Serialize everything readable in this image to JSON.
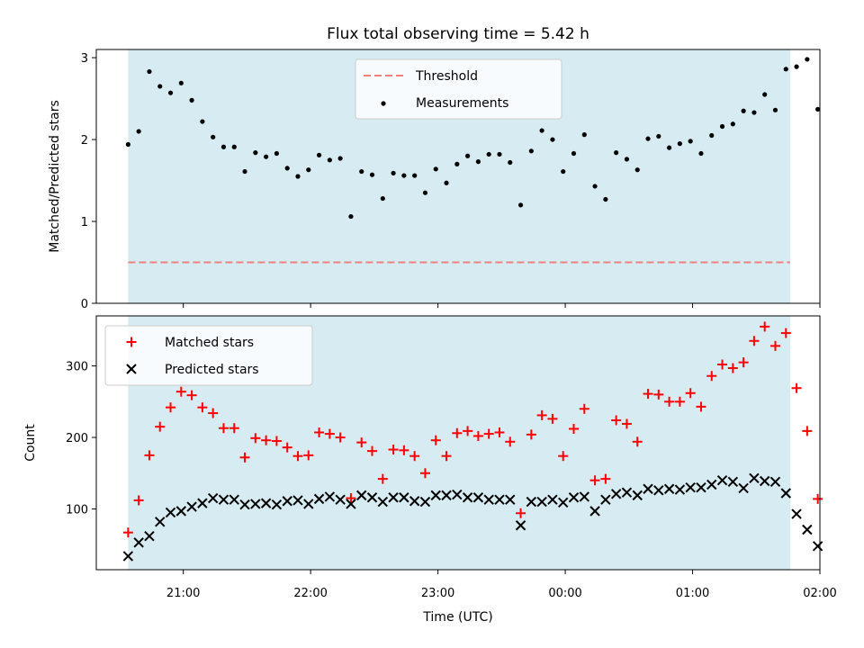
{
  "colors": {
    "span": "#add8e6",
    "threshold": "#f08080",
    "matched": "#ff0000",
    "predicted": "#000000",
    "measurements": "#000000"
  },
  "chart_data": [
    {
      "type": "scatter",
      "title": "Flux total observing time = 5.42 h",
      "ylabel": "Matched/Predicted stars",
      "xlabel": "",
      "ylim": [
        0,
        3.1
      ],
      "yticks": [
        0,
        1,
        2,
        3
      ],
      "xlim": [
        "20:19",
        "02:00"
      ],
      "xticks": [
        "21:00",
        "22:00",
        "23:00",
        "00:00",
        "01:00",
        "02:00"
      ],
      "show_xtick_labels": false,
      "shaded_span": [
        "20:34",
        "01:46"
      ],
      "legend": {
        "placement": "top-center",
        "entries": [
          "Threshold",
          "Measurements"
        ]
      },
      "threshold": {
        "name": "Threshold",
        "value": 0.5,
        "style": "dashed"
      },
      "series": [
        {
          "name": "Measurements",
          "x": [
            "20:34",
            "20:39",
            "20:44",
            "20:49",
            "20:54",
            "20:59",
            "21:04",
            "21:09",
            "21:14",
            "21:19",
            "21:24",
            "21:29",
            "21:34",
            "21:39",
            "21:44",
            "21:49",
            "21:54",
            "21:59",
            "22:04",
            "22:09",
            "22:14",
            "22:19",
            "22:24",
            "22:29",
            "22:34",
            "22:39",
            "22:44",
            "22:49",
            "22:54",
            "22:59",
            "23:04",
            "23:09",
            "23:14",
            "23:19",
            "23:24",
            "23:29",
            "23:34",
            "23:39",
            "23:44",
            "23:49",
            "23:54",
            "23:59",
            "00:04",
            "00:09",
            "00:14",
            "00:19",
            "00:24",
            "00:29",
            "00:34",
            "00:39",
            "00:44",
            "00:49",
            "00:54",
            "00:59",
            "01:04",
            "01:09",
            "01:14",
            "01:19",
            "01:24",
            "01:29",
            "01:34",
            "01:39",
            "01:44"
          ],
          "values": [
            1.94,
            2.1,
            2.83,
            2.65,
            2.57,
            2.69,
            2.48,
            2.22,
            2.03,
            1.91,
            1.91,
            1.61,
            1.84,
            1.79,
            1.83,
            1.65,
            1.55,
            1.63,
            1.81,
            1.75,
            1.77,
            1.06,
            1.61,
            1.57,
            1.28,
            1.59,
            1.56,
            1.56,
            1.35,
            1.64,
            1.47,
            1.7,
            1.8,
            1.73,
            1.82,
            1.82,
            1.72,
            1.2,
            1.86,
            2.11,
            2.0,
            1.61,
            1.83,
            2.06,
            1.43,
            1.27,
            1.84,
            1.76,
            1.63,
            2.01,
            2.04,
            1.9,
            1.95,
            1.98,
            1.83,
            2.05,
            2.16,
            2.19,
            2.35,
            2.33,
            2.55,
            2.36,
            2.86
          ]
        }
      ],
      "extra_points": {
        "x": [
          "01:49",
          "01:54",
          "01:59"
        ],
        "values": [
          2.89,
          2.98,
          2.37
        ]
      }
    },
    {
      "type": "scatter",
      "title": "",
      "ylabel": "Count",
      "xlabel": "Time (UTC)",
      "ylim": [
        15,
        370
      ],
      "yticks": [
        100,
        200,
        300
      ],
      "xlim": [
        "20:19",
        "02:00"
      ],
      "xticks": [
        "21:00",
        "22:00",
        "23:00",
        "00:00",
        "01:00",
        "02:00"
      ],
      "show_xtick_labels": true,
      "shaded_span": [
        "20:34",
        "01:46"
      ],
      "legend": {
        "placement": "top-left",
        "entries": [
          "Matched stars",
          "Predicted stars"
        ]
      },
      "series": [
        {
          "name": "Matched stars",
          "marker": "plus",
          "x": [
            "20:34",
            "20:39",
            "20:44",
            "20:49",
            "20:54",
            "20:59",
            "21:04",
            "21:09",
            "21:14",
            "21:19",
            "21:24",
            "21:29",
            "21:34",
            "21:39",
            "21:44",
            "21:49",
            "21:54",
            "21:59",
            "22:04",
            "22:09",
            "22:14",
            "22:19",
            "22:24",
            "22:29",
            "22:34",
            "22:39",
            "22:44",
            "22:49",
            "22:54",
            "22:59",
            "23:04",
            "23:09",
            "23:14",
            "23:19",
            "23:24",
            "23:29",
            "23:34",
            "23:39",
            "23:44",
            "23:49",
            "23:54",
            "23:59",
            "00:04",
            "00:09",
            "00:14",
            "00:19",
            "00:24",
            "00:29",
            "00:34",
            "00:39",
            "00:44",
            "00:49",
            "00:54",
            "00:59",
            "01:04",
            "01:09",
            "01:14",
            "01:19",
            "01:24",
            "01:29",
            "01:34",
            "01:39",
            "01:44",
            "01:49",
            "01:54",
            "01:59"
          ],
          "values": [
            67,
            112,
            175,
            215,
            242,
            264,
            259,
            242,
            234,
            213,
            213,
            172,
            199,
            196,
            195,
            186,
            174,
            175,
            207,
            205,
            200,
            115,
            193,
            181,
            142,
            183,
            182,
            174,
            150,
            196,
            174,
            206,
            209,
            202,
            205,
            207,
            194,
            94,
            204,
            231,
            226,
            174,
            212,
            240,
            140,
            142,
            224,
            219,
            194,
            261,
            260,
            250,
            250,
            262,
            243,
            286,
            302,
            297,
            305,
            335,
            355,
            328,
            346,
            269,
            209,
            114
          ]
        },
        {
          "name": "Predicted stars",
          "marker": "x",
          "x": [
            "20:34",
            "20:39",
            "20:44",
            "20:49",
            "20:54",
            "20:59",
            "21:04",
            "21:09",
            "21:14",
            "21:19",
            "21:24",
            "21:29",
            "21:34",
            "21:39",
            "21:44",
            "21:49",
            "21:54",
            "21:59",
            "22:04",
            "22:09",
            "22:14",
            "22:19",
            "22:24",
            "22:29",
            "22:34",
            "22:39",
            "22:44",
            "22:49",
            "22:54",
            "22:59",
            "23:04",
            "23:09",
            "23:14",
            "23:19",
            "23:24",
            "23:29",
            "23:34",
            "23:39",
            "23:44",
            "23:49",
            "23:54",
            "23:59",
            "00:04",
            "00:09",
            "00:14",
            "00:19",
            "00:24",
            "00:29",
            "00:34",
            "00:39",
            "00:44",
            "00:49",
            "00:54",
            "00:59",
            "01:04",
            "01:09",
            "01:14",
            "01:19",
            "01:24",
            "01:29",
            "01:34",
            "01:39",
            "01:44",
            "01:49",
            "01:54",
            "01:59"
          ],
          "values": [
            34,
            53,
            62,
            82,
            95,
            97,
            103,
            108,
            115,
            113,
            113,
            106,
            107,
            108,
            106,
            111,
            112,
            107,
            114,
            117,
            113,
            107,
            119,
            116,
            110,
            116,
            116,
            111,
            110,
            119,
            119,
            120,
            116,
            116,
            113,
            113,
            113,
            77,
            110,
            110,
            113,
            109,
            116,
            117,
            97,
            113,
            121,
            123,
            119,
            128,
            126,
            128,
            127,
            130,
            130,
            134,
            140,
            138,
            129,
            143,
            139,
            138,
            122,
            93,
            71,
            48
          ]
        }
      ]
    }
  ]
}
